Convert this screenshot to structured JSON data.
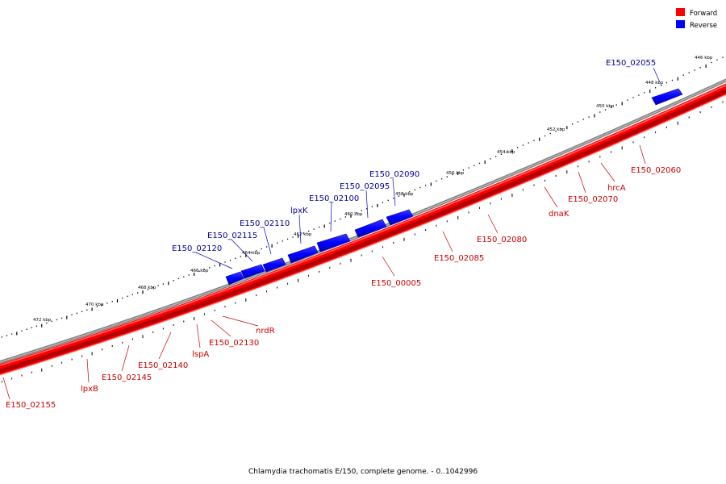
{
  "colors": {
    "forward": "#ff0000",
    "reverse": "#0000ff",
    "forward_label": "#cc0000",
    "reverse_label": "#000099"
  },
  "legend": {
    "forward_label": "Forward",
    "reverse_label": "Reverse"
  },
  "caption": "Chlamydia trachomatis E/150, complete genome. - 0..1042996",
  "scale": {
    "labels": [
      "446 kbp",
      "448 kbp",
      "450 kbp",
      "452 kbp",
      "454 kbp",
      "456 kbp",
      "458 kbp",
      "460 kbp",
      "462 kbp",
      "464 kbp",
      "466 kbp",
      "468 kbp",
      "470 kbp",
      "472 kbp"
    ]
  },
  "reverse_labels": [
    "E150_02055",
    "E150_02090",
    "E150_02095",
    "E150_02100",
    "lpxK",
    "E150_02110",
    "E150_02115",
    "E150_02120"
  ],
  "forward_labels": [
    "E150_02060",
    "hrcA",
    "E150_02070",
    "dnaK",
    "E150_02080",
    "E150_02085",
    "E150_00005",
    "nrdR",
    "E150_02130",
    "lspA",
    "E150_02140",
    "E150_02145",
    "lpxB",
    "E150_02155"
  ]
}
